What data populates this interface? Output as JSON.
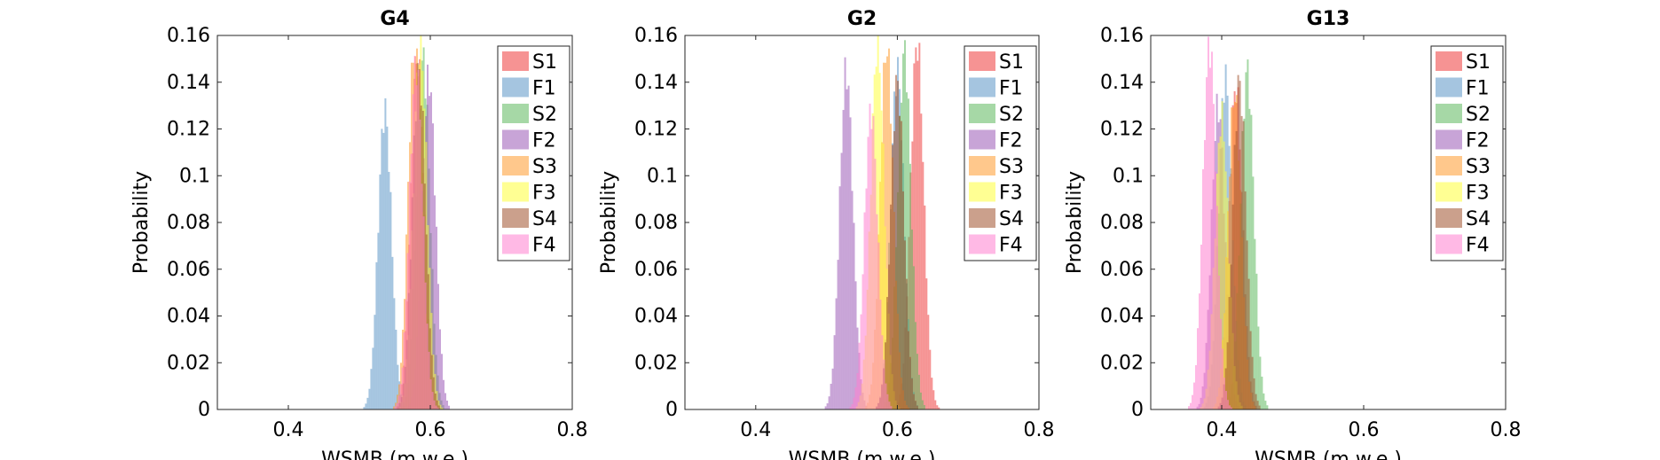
{
  "chart_data": [
    {
      "type": "histogram",
      "title": "G4",
      "xlabel": "WSMB (m w.e.)",
      "ylabel": "Probability",
      "xlim": [
        0.3,
        0.8
      ],
      "ylim": [
        0,
        0.16
      ],
      "xticks": [
        0.4,
        0.6,
        0.8
      ],
      "yticks": [
        0,
        0.02,
        0.04,
        0.06,
        0.08,
        0.1,
        0.12,
        0.14,
        0.16
      ],
      "legend_position": "top-right",
      "series": [
        {
          "name": "S1",
          "color": "#ee3a3a",
          "mean": 0.582,
          "peak": 0.15
        },
        {
          "name": "F1",
          "color": "#5b95c6",
          "mean": 0.536,
          "peak": 0.128
        },
        {
          "name": "S2",
          "color": "#5cb85c",
          "mean": 0.59,
          "peak": 0.15
        },
        {
          "name": "F2",
          "color": "#9b59b6",
          "mean": 0.598,
          "peak": 0.142
        },
        {
          "name": "S3",
          "color": "#ff9a2e",
          "mean": 0.578,
          "peak": 0.155
        },
        {
          "name": "F3",
          "color": "#ffff3a",
          "mean": 0.586,
          "peak": 0.158
        },
        {
          "name": "S4",
          "color": "#a0522d",
          "mean": 0.584,
          "peak": 0.145
        },
        {
          "name": "F4",
          "color": "#ff7fcf",
          "mean": 0.58,
          "peak": 0.148
        }
      ]
    },
    {
      "type": "histogram",
      "title": "G2",
      "xlabel": "WSMB (m w.e.)",
      "ylabel": "Probability",
      "xlim": [
        0.3,
        0.8
      ],
      "ylim": [
        0,
        0.16
      ],
      "xticks": [
        0.4,
        0.6,
        0.8
      ],
      "yticks": [
        0,
        0.02,
        0.04,
        0.06,
        0.08,
        0.1,
        0.12,
        0.14,
        0.16
      ],
      "legend_position": "top-right",
      "series": [
        {
          "name": "S1",
          "color": "#ee3a3a",
          "mean": 0.628,
          "peak": 0.157
        },
        {
          "name": "F1",
          "color": "#5b95c6",
          "mean": 0.6,
          "peak": 0.145
        },
        {
          "name": "S2",
          "color": "#5cb85c",
          "mean": 0.61,
          "peak": 0.153
        },
        {
          "name": "F2",
          "color": "#9b59b6",
          "mean": 0.528,
          "peak": 0.145
        },
        {
          "name": "S3",
          "color": "#ff9a2e",
          "mean": 0.585,
          "peak": 0.155
        },
        {
          "name": "F3",
          "color": "#ffff3a",
          "mean": 0.572,
          "peak": 0.157
        },
        {
          "name": "S4",
          "color": "#a0522d",
          "mean": 0.6,
          "peak": 0.14
        },
        {
          "name": "F4",
          "color": "#ff7fcf",
          "mean": 0.563,
          "peak": 0.128
        }
      ]
    },
    {
      "type": "histogram",
      "title": "G13",
      "xlabel": "WSMB (m w.e.)",
      "ylabel": "Probability",
      "xlim": [
        0.3,
        0.8
      ],
      "ylim": [
        0,
        0.16
      ],
      "xticks": [
        0.4,
        0.6,
        0.8
      ],
      "yticks": [
        0,
        0.02,
        0.04,
        0.06,
        0.08,
        0.1,
        0.12,
        0.14,
        0.16
      ],
      "legend_position": "top-right",
      "series": [
        {
          "name": "S1",
          "color": "#ee3a3a",
          "mean": 0.42,
          "peak": 0.138
        },
        {
          "name": "F1",
          "color": "#5b95c6",
          "mean": 0.405,
          "peak": 0.142
        },
        {
          "name": "S2",
          "color": "#5cb85c",
          "mean": 0.436,
          "peak": 0.145
        },
        {
          "name": "F2",
          "color": "#9b59b6",
          "mean": 0.395,
          "peak": 0.13
        },
        {
          "name": "S3",
          "color": "#ff9a2e",
          "mean": 0.418,
          "peak": 0.135
        },
        {
          "name": "F3",
          "color": "#ffff3a",
          "mean": 0.4,
          "peak": 0.125
        },
        {
          "name": "S4",
          "color": "#a0522d",
          "mean": 0.425,
          "peak": 0.14
        },
        {
          "name": "F4",
          "color": "#ff7fcf",
          "mean": 0.383,
          "peak": 0.156
        }
      ]
    }
  ]
}
